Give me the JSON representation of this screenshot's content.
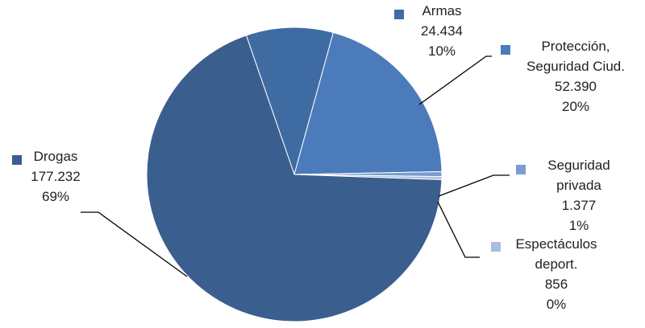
{
  "chart_data": {
    "type": "pie",
    "title": "",
    "slices": [
      {
        "name": "Armas",
        "label_lines": [
          "Armas",
          "24.434",
          "10%"
        ],
        "value": 24434,
        "percent": "10%",
        "color": "#3F6BA3"
      },
      {
        "name": "Protección, Seguridad Ciud.",
        "label_lines": [
          "Protección,",
          "Seguridad Ciud.",
          "52.390",
          "20%"
        ],
        "value": 52390,
        "percent": "20%",
        "color": "#4B7BBB"
      },
      {
        "name": "Seguridad privada",
        "label_lines": [
          "Seguridad",
          "privada",
          "1.377",
          "1%"
        ],
        "value": 1377,
        "percent": "1%",
        "color": "#7C9CCE"
      },
      {
        "name": "Espectáculos deport.",
        "label_lines": [
          "Espectáculos",
          "deport.",
          "856",
          "0%"
        ],
        "value": 856,
        "percent": "0%",
        "color": "#A8BDE0"
      },
      {
        "name": "Drogas",
        "label_lines": [
          "Drogas",
          "177.232",
          "69%"
        ],
        "value": 177232,
        "percent": "69%",
        "color": "#3A5E8E"
      }
    ],
    "start_angle_deg": 341
  }
}
